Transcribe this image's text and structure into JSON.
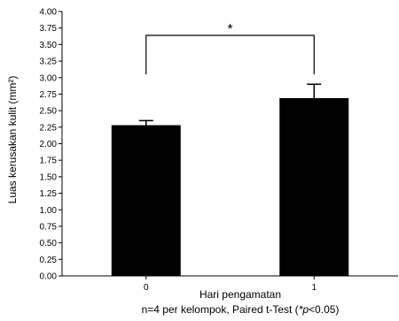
{
  "chart_data": {
    "type": "bar",
    "categories": [
      "0",
      "1"
    ],
    "values": [
      2.28,
      2.69
    ],
    "errors": [
      0.07,
      0.21
    ],
    "ylim": [
      0,
      4.0
    ],
    "ytick_step": 0.25,
    "ylabel": "Luas kerusakan kulit (mm²)",
    "xlabel": "Hari pengamatan",
    "note_prefix": "n=4 per kelompok, Paired t-Test (",
    "note_star": "*",
    "note_p": "p",
    "note_suffix": "<0.05)",
    "significance": {
      "between": [
        "0",
        "1"
      ],
      "label": "*"
    },
    "grid": false,
    "bar_color": "#000000"
  }
}
